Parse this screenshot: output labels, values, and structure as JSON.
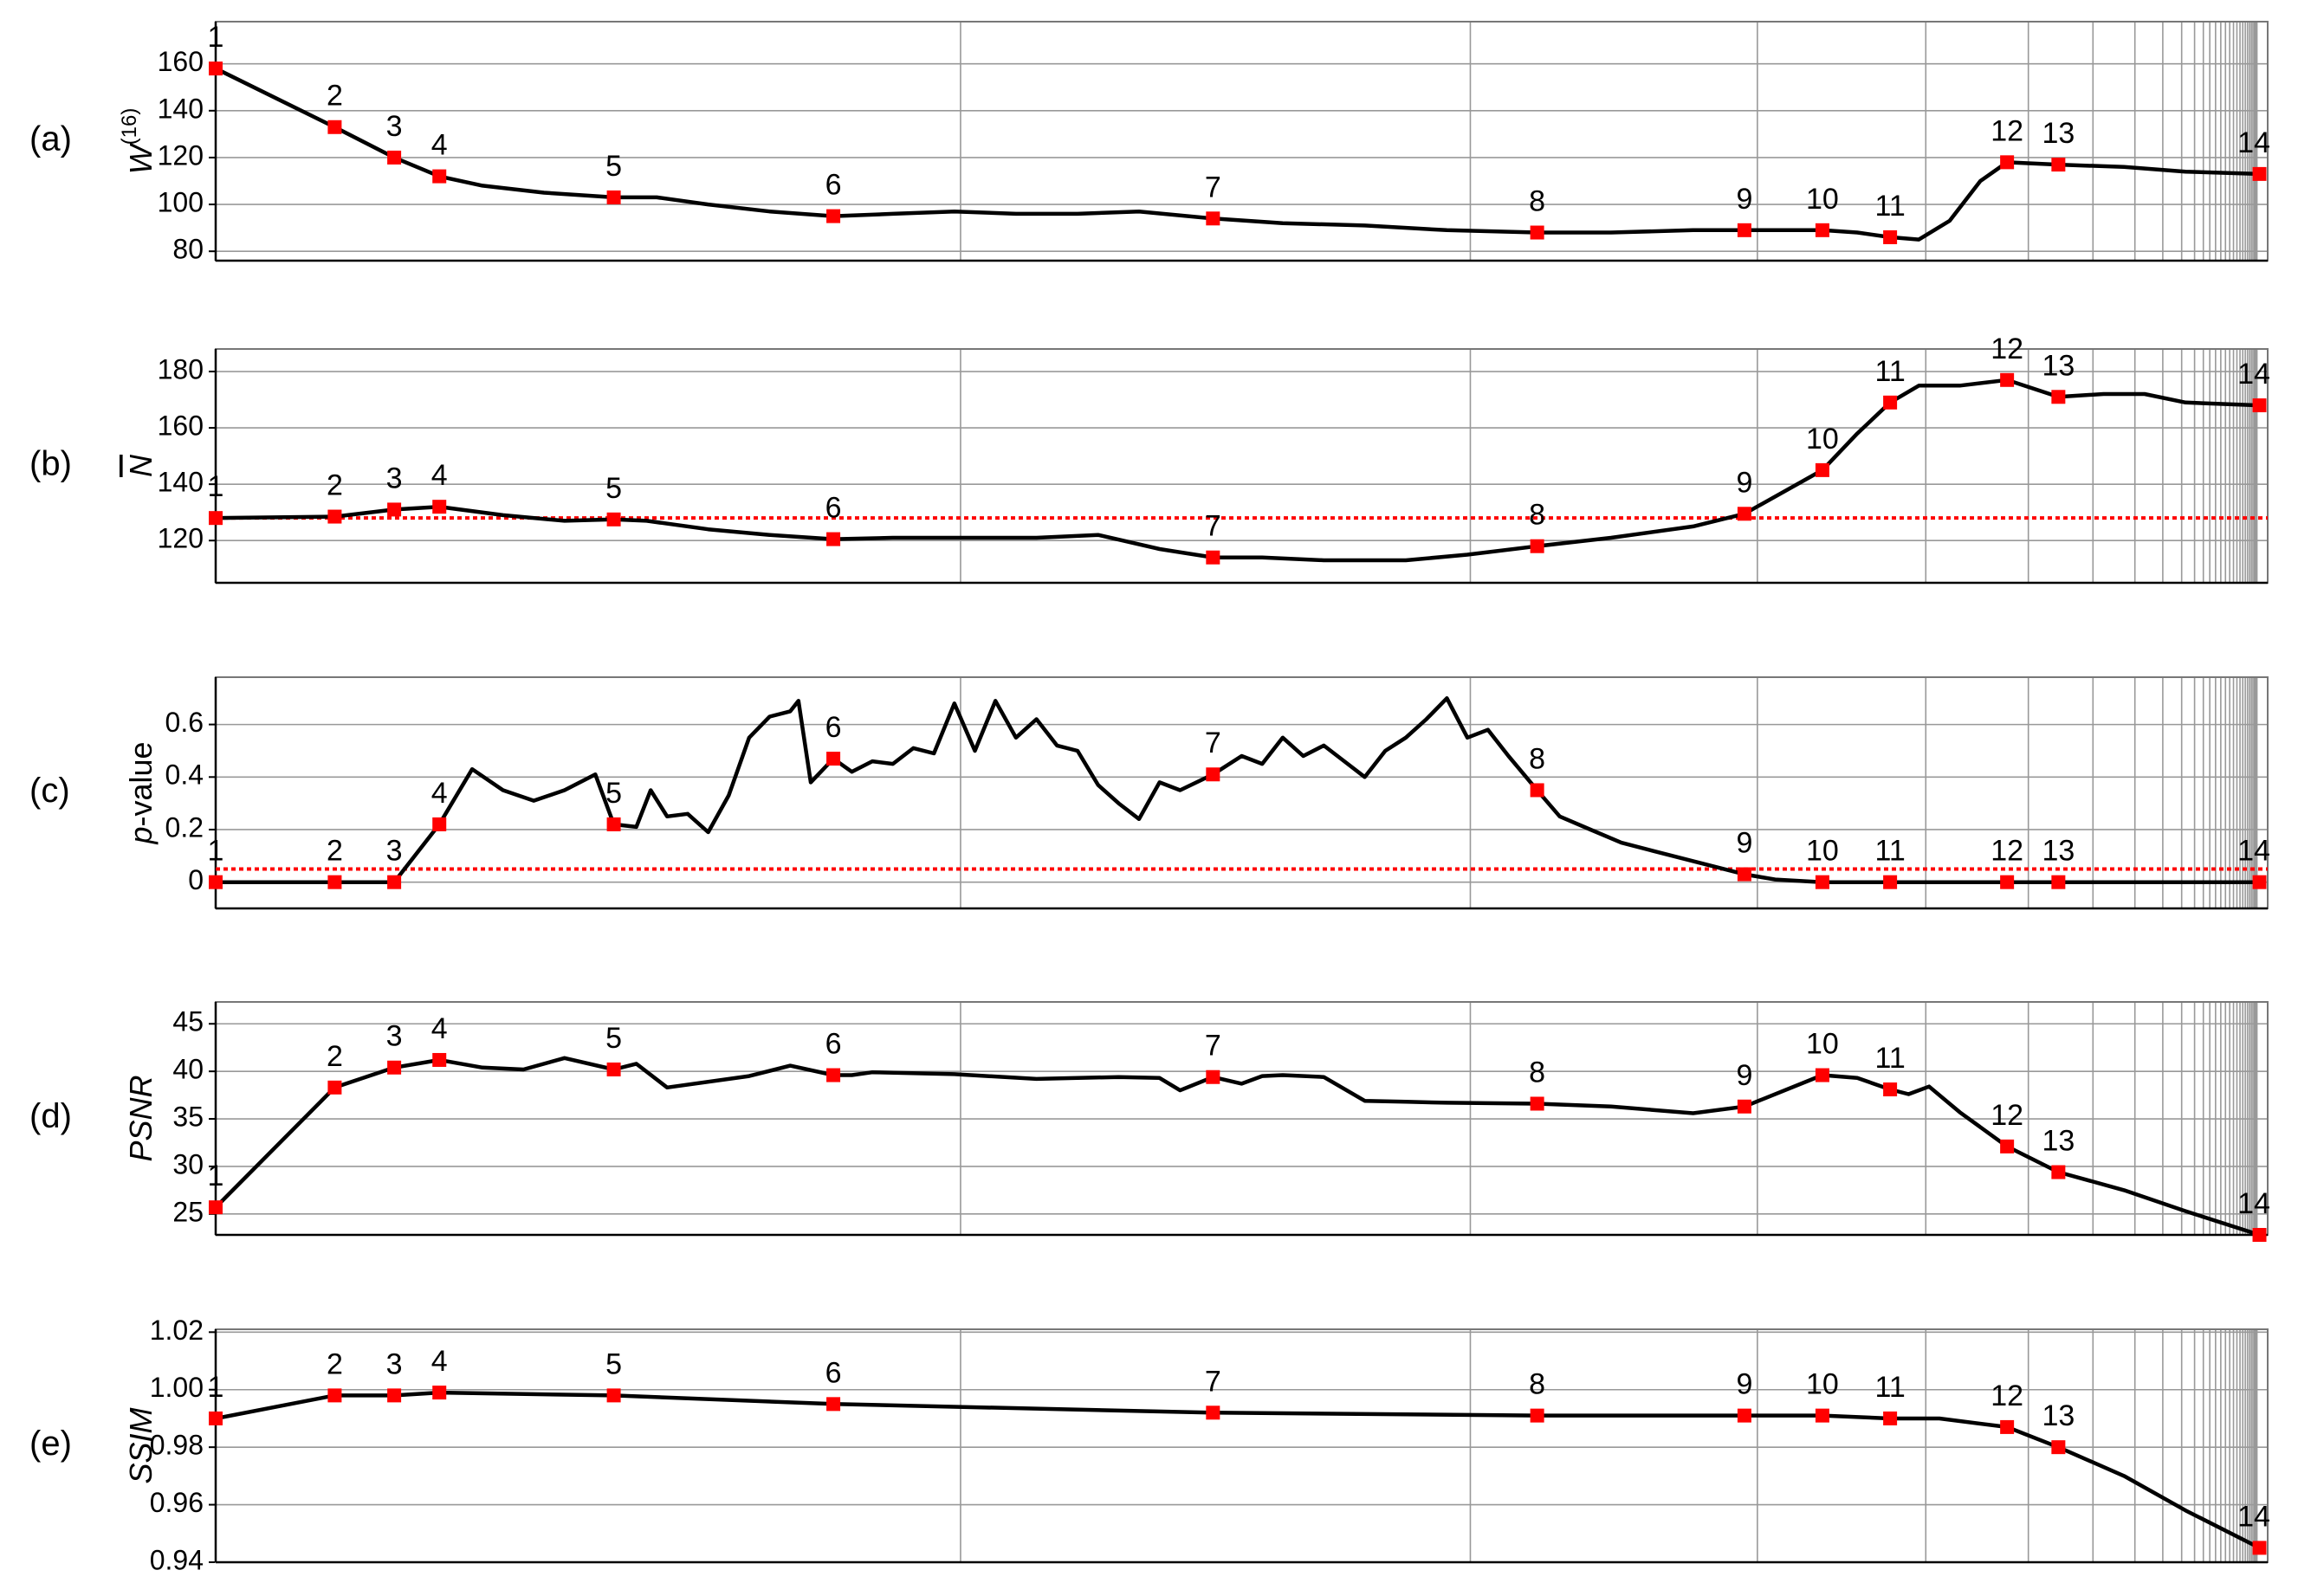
{
  "chart_data": [
    {
      "type": "line",
      "panel": "(a)",
      "ylabel": [
        {
          "text": "W",
          "italic": true
        },
        {
          "text": "(16)",
          "sup": true
        }
      ],
      "xlim": [
        0,
        100
      ],
      "ylim": [
        76,
        178
      ],
      "yticks": [
        80,
        100,
        120,
        140,
        160
      ],
      "grid": true,
      "line": {
        "color": "#000000",
        "x": [
          0,
          5.8,
          8.7,
          10.9,
          13,
          16,
          19.4,
          21.5,
          24,
          27,
          30.1,
          33,
          36,
          39,
          42,
          45,
          48.6,
          52,
          56,
          60,
          64.4,
          68,
          72,
          74.5,
          78.3,
          80,
          81.6,
          83,
          84.5,
          86,
          87.3,
          89.8,
          93,
          96,
          99.6
        ],
        "values": [
          158,
          133,
          120,
          112,
          108,
          105,
          103,
          103,
          100,
          97,
          95,
          96,
          97,
          96,
          96,
          97,
          94,
          92,
          91,
          89,
          88,
          88,
          89,
          89,
          89,
          88,
          86,
          85,
          93,
          110,
          118,
          117,
          116,
          114,
          113
        ]
      },
      "points": {
        "color": "#ff0000",
        "labels": [
          "1",
          "2",
          "3",
          "4",
          "5",
          "6",
          "7",
          "8",
          "9",
          "10",
          "11",
          "12",
          "13",
          "14"
        ],
        "x": [
          0,
          5.8,
          8.7,
          10.9,
          19.4,
          30.1,
          48.6,
          64.4,
          74.5,
          78.3,
          81.6,
          87.3,
          89.8,
          99.6
        ],
        "values": [
          158,
          133,
          120,
          112,
          103,
          95,
          94,
          88,
          89,
          89,
          86,
          118,
          117,
          113
        ]
      }
    },
    {
      "type": "line",
      "panel": "(b)",
      "ylabel": [
        {
          "text": "N",
          "italic": true,
          "overline": true
        }
      ],
      "xlim": [
        0,
        100
      ],
      "ylim": [
        105,
        188
      ],
      "yticks": [
        120,
        140,
        160,
        180
      ],
      "grid": true,
      "ref_line": {
        "value": 128,
        "color": "#ff0000"
      },
      "line": {
        "color": "#000000",
        "x": [
          0,
          5.8,
          8.7,
          10.9,
          14,
          17,
          19.4,
          21,
          24,
          27,
          30.1,
          33,
          36,
          40,
          43,
          46,
          48.6,
          51,
          54,
          58,
          61,
          64.4,
          68,
          72,
          74.5,
          78.3,
          80,
          81.6,
          83,
          85,
          87.3,
          89.8,
          92,
          94,
          96,
          99.6
        ],
        "values": [
          128,
          128.5,
          131,
          132,
          129,
          127,
          127.5,
          127,
          124,
          122,
          120.5,
          121,
          121,
          121,
          122,
          117,
          114,
          114,
          113,
          113,
          115,
          118,
          121,
          125,
          129.5,
          145,
          158,
          169,
          175,
          175,
          177,
          171,
          172,
          172,
          169,
          168
        ]
      },
      "points": {
        "color": "#ff0000",
        "labels": [
          "1",
          "2",
          "3",
          "4",
          "5",
          "6",
          "7",
          "8",
          "9",
          "10",
          "11",
          "12",
          "13",
          "14"
        ],
        "x": [
          0,
          5.8,
          8.7,
          10.9,
          19.4,
          30.1,
          48.6,
          64.4,
          74.5,
          78.3,
          81.6,
          87.3,
          89.8,
          99.6
        ],
        "values": [
          128,
          128.5,
          131,
          132,
          127.5,
          120.5,
          114,
          118,
          129.5,
          145,
          169,
          177,
          171,
          168
        ]
      }
    },
    {
      "type": "line",
      "panel": "(c)",
      "ylabel": [
        {
          "text": "p",
          "italic": true
        },
        {
          "text": "-value"
        }
      ],
      "xlim": [
        0,
        100
      ],
      "ylim": [
        -0.1,
        0.78
      ],
      "yticks": [
        0,
        0.2,
        0.4,
        0.6
      ],
      "grid": true,
      "ref_line": {
        "value": 0.05,
        "color": "#ff0000"
      },
      "line": {
        "color": "#000000",
        "x": [
          0,
          5.8,
          8.7,
          10.9,
          12.5,
          14,
          15.5,
          17,
          18.5,
          19.4,
          20.5,
          21.2,
          22,
          23,
          24,
          25,
          26,
          27,
          28,
          28.4,
          29,
          30.1,
          31,
          32,
          33,
          34,
          35,
          36,
          37,
          38,
          39,
          40,
          41,
          42,
          43,
          44,
          45,
          46,
          47,
          48.6,
          50,
          51,
          52,
          53,
          54,
          55,
          56,
          57,
          58,
          59,
          60,
          61,
          62,
          63,
          64.4,
          65.5,
          67,
          68.5,
          70,
          72,
          74.5,
          76,
          78.3,
          81.6,
          87.3,
          89.8,
          99.6
        ],
        "values": [
          0,
          0,
          0,
          0.22,
          0.43,
          0.35,
          0.31,
          0.35,
          0.41,
          0.22,
          0.21,
          0.35,
          0.25,
          0.26,
          0.19,
          0.33,
          0.55,
          0.63,
          0.65,
          0.69,
          0.38,
          0.47,
          0.42,
          0.46,
          0.45,
          0.51,
          0.49,
          0.68,
          0.5,
          0.69,
          0.55,
          0.62,
          0.52,
          0.5,
          0.37,
          0.3,
          0.24,
          0.38,
          0.35,
          0.41,
          0.48,
          0.45,
          0.55,
          0.48,
          0.52,
          0.46,
          0.4,
          0.5,
          0.55,
          0.62,
          0.7,
          0.55,
          0.58,
          0.48,
          0.35,
          0.25,
          0.2,
          0.15,
          0.12,
          0.08,
          0.03,
          0.01,
          0,
          0,
          0,
          0,
          0
        ]
      },
      "points": {
        "color": "#ff0000",
        "labels": [
          "1",
          "2",
          "3",
          "4",
          "5",
          "6",
          "7",
          "8",
          "9",
          "10",
          "11",
          "12",
          "13",
          "14"
        ],
        "x": [
          0,
          5.8,
          8.7,
          10.9,
          19.4,
          30.1,
          48.6,
          64.4,
          74.5,
          78.3,
          81.6,
          87.3,
          89.8,
          99.6
        ],
        "values": [
          0,
          0,
          0,
          0.22,
          0.22,
          0.47,
          0.41,
          0.35,
          0.03,
          0,
          0,
          0,
          0,
          0
        ]
      }
    },
    {
      "type": "line",
      "panel": "(d)",
      "ylabel": [
        {
          "text": "PSNR",
          "italic": true
        }
      ],
      "xlim": [
        0,
        100
      ],
      "ylim": [
        22.8,
        47.3
      ],
      "yticks": [
        25,
        30,
        35,
        40,
        45
      ],
      "grid": true,
      "line": {
        "color": "#000000",
        "x": [
          0,
          5.8,
          8.7,
          10.9,
          13,
          15,
          17,
          19.4,
          20.5,
          22,
          26,
          28,
          30.1,
          31,
          32,
          36,
          40,
          44,
          46,
          47,
          48.6,
          50,
          51,
          52,
          54,
          56,
          58,
          60,
          64.4,
          68,
          72,
          74.5,
          78.3,
          80,
          81.6,
          82.5,
          83.5,
          85,
          87.3,
          89.8,
          93,
          96,
          99.6
        ],
        "values": [
          25.7,
          38.3,
          40.4,
          41.2,
          40.4,
          40.2,
          41.4,
          40.2,
          40.8,
          38.3,
          39.5,
          40.6,
          39.6,
          39.6,
          39.9,
          39.7,
          39.2,
          39.4,
          39.3,
          38,
          39.4,
          38.7,
          39.5,
          39.6,
          39.4,
          36.9,
          36.8,
          36.7,
          36.6,
          36.3,
          35.6,
          36.3,
          39.6,
          39.3,
          38.1,
          37.6,
          38.4,
          35.7,
          32.1,
          29.4,
          27.5,
          25.3,
          22.8
        ]
      },
      "points": {
        "color": "#ff0000",
        "labels": [
          "1",
          "2",
          "3",
          "4",
          "5",
          "6",
          "7",
          "8",
          "9",
          "10",
          "11",
          "12",
          "13",
          "14"
        ],
        "x": [
          0,
          5.8,
          8.7,
          10.9,
          19.4,
          30.1,
          48.6,
          64.4,
          74.5,
          78.3,
          81.6,
          87.3,
          89.8,
          99.6
        ],
        "values": [
          25.7,
          38.3,
          40.4,
          41.2,
          40.2,
          39.6,
          39.4,
          36.6,
          36.3,
          39.6,
          38.1,
          32.1,
          29.4,
          22.8
        ]
      }
    },
    {
      "type": "line",
      "panel": "(e)",
      "ylabel": [
        {
          "text": "SSIM",
          "italic": true
        }
      ],
      "xlim": [
        0,
        100
      ],
      "ylim": [
        0.94,
        1.021
      ],
      "yticks": [
        0.94,
        0.96,
        0.98,
        {
          "value": 1,
          "label": "1.00"
        },
        1.02
      ],
      "grid": true,
      "line": {
        "color": "#000000",
        "x": [
          0,
          5.8,
          8.7,
          10.9,
          19.4,
          30.1,
          48.6,
          64.4,
          74.5,
          78.3,
          81.6,
          84,
          87.3,
          89.8,
          93,
          96,
          99.6
        ],
        "values": [
          0.99,
          0.998,
          0.998,
          0.999,
          0.998,
          0.995,
          0.992,
          0.991,
          0.991,
          0.991,
          0.99,
          0.99,
          0.987,
          0.98,
          0.97,
          0.958,
          0.945
        ]
      },
      "points": {
        "color": "#ff0000",
        "labels": [
          "1",
          "2",
          "3",
          "4",
          "5",
          "6",
          "7",
          "8",
          "9",
          "10",
          "11",
          "12",
          "13",
          "14"
        ],
        "x": [
          0,
          5.8,
          8.7,
          10.9,
          19.4,
          30.1,
          48.6,
          64.4,
          74.5,
          78.3,
          81.6,
          87.3,
          89.8,
          99.6
        ],
        "values": [
          0.99,
          0.998,
          0.998,
          0.999,
          0.998,
          0.995,
          0.992,
          0.991,
          0.991,
          0.991,
          0.99,
          0.987,
          0.98,
          0.945
        ]
      }
    }
  ]
}
